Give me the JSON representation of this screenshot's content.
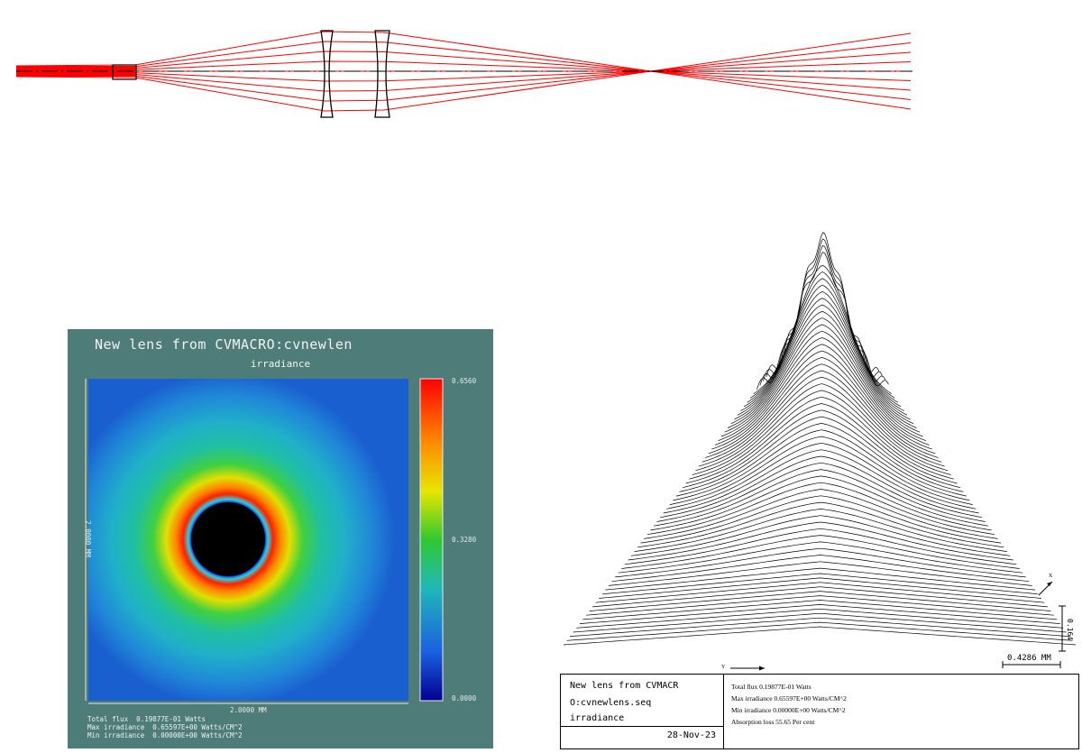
{
  "irradiance_panel": {
    "title": "New lens from CVMACRO:cvnewlen",
    "subtitle": "irradiance",
    "x_size_label": "2.0000 MM",
    "y_size_label": "2.0000 MM",
    "colorbar_max": "0.6560",
    "colorbar_mid": "0.3280",
    "colorbar_min": "0.0000",
    "stats": {
      "total_flux": "Total flux  0.19877E-01 Watts",
      "max_irradiance": "Max irradiance  0.65597E+00 Watts/CM^2",
      "min_irradiance": "Min irradiance  0.00000E+00 Watts/CM^2"
    }
  },
  "surface_plot": {
    "scale_label": "0.4286 MM",
    "z_scale_label": "0.164",
    "y_axis_label": "Y",
    "x_axis_label": "X"
  },
  "title_block": {
    "line1": "New lens from CVMACR",
    "line2": "O:cvnewlens.seq",
    "line3": "irradiance",
    "date": "28-Nov-23",
    "total_flux": "Total flux  0.19877E-01 Watts",
    "max_irradiance": "Max irradiance  0.65597E+00 Watts/CM^2",
    "min_irradiance": "Min irradiance  0.00000E+00 Watts/CM^2",
    "absorption_loss": "Absorption loss  55.65 Per cent"
  },
  "colors": {
    "rays": "#ff0000",
    "lens_outline": "#000000",
    "panel_bg": "#4e7d79"
  }
}
